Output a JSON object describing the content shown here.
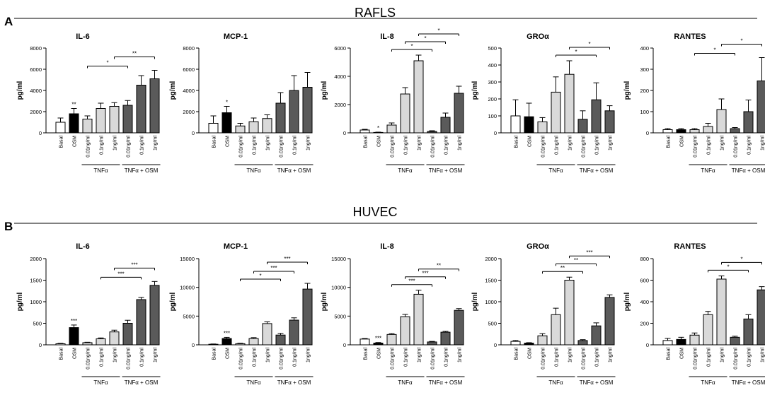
{
  "figure": {
    "panels": [
      {
        "letter": "A",
        "title": "RAFLS"
      },
      {
        "letter": "B",
        "title": "HUVEC"
      }
    ],
    "categories": [
      "Basal",
      "OSM",
      "0.01ng/ml",
      "0.1ng/ml",
      "1ng/ml",
      "0.01ng/ml",
      "0.1ng/ml",
      "1ng/ml"
    ],
    "group_labels": [
      "TNFα",
      "TNFα + OSM"
    ],
    "ylabel": "pg/ml",
    "colors": {
      "basal": "#ffffff",
      "osm": "#000000",
      "tnf": "#d9d9d9",
      "tnf_osm": "#5a5a5a",
      "axis": "#000000"
    }
  },
  "chart_data": [
    {
      "panel": "A",
      "type": "bar",
      "title": "IL-6",
      "ylim": [
        0,
        8000
      ],
      "yticks": [
        0,
        2000,
        4000,
        6000,
        8000
      ],
      "values": [
        1000,
        1800,
        1300,
        2300,
        2500,
        2600,
        4500,
        5100
      ],
      "errors": [
        400,
        500,
        300,
        500,
        350,
        450,
        900,
        800
      ],
      "star_labels": [
        "",
        "**",
        "",
        "",
        "",
        "",
        "",
        ""
      ],
      "brackets": [
        {
          "from": 2,
          "to": 5,
          "label": "*"
        },
        {
          "from": 4,
          "to": 7,
          "label": "**"
        }
      ]
    },
    {
      "panel": "A",
      "type": "bar",
      "title": "MCP-1",
      "ylim": [
        0,
        8000
      ],
      "yticks": [
        0,
        2000,
        4000,
        6000,
        8000
      ],
      "values": [
        900,
        1900,
        650,
        1050,
        1350,
        2800,
        4000,
        4300
      ],
      "errors": [
        700,
        600,
        250,
        350,
        350,
        1000,
        1400,
        1400
      ],
      "star_labels": [
        "",
        "*",
        "",
        "",
        "",
        "",
        "",
        ""
      ],
      "brackets": []
    },
    {
      "panel": "A",
      "type": "bar",
      "title": "IL-8",
      "ylim": [
        0,
        6000
      ],
      "yticks": [
        0,
        2000,
        4000,
        6000
      ],
      "values": [
        200,
        30,
        550,
        2750,
        5100,
        100,
        1100,
        2800
      ],
      "errors": [
        50,
        20,
        150,
        450,
        400,
        50,
        300,
        500
      ],
      "star_labels": [
        "",
        "*",
        "",
        "",
        "",
        "",
        "",
        ""
      ],
      "brackets": [
        {
          "from": 2,
          "to": 5,
          "label": "*"
        },
        {
          "from": 3,
          "to": 6,
          "label": "*"
        },
        {
          "from": 4,
          "to": 7,
          "label": "*"
        }
      ]
    },
    {
      "panel": "A",
      "type": "bar",
      "title": "GROα",
      "ylim": [
        0,
        500
      ],
      "yticks": [
        0,
        100,
        200,
        300,
        400,
        500
      ],
      "values": [
        100,
        95,
        65,
        240,
        345,
        80,
        195,
        130
      ],
      "errors": [
        95,
        80,
        25,
        90,
        80,
        50,
        100,
        30
      ],
      "star_labels": [
        "",
        "",
        "",
        "",
        "",
        "",
        "",
        ""
      ],
      "brackets": [
        {
          "from": 3,
          "to": 6,
          "label": "*"
        },
        {
          "from": 4,
          "to": 7,
          "label": "*"
        }
      ]
    },
    {
      "panel": "A",
      "type": "bar",
      "title": "RANTES",
      "ylim": [
        0,
        400
      ],
      "yticks": [
        0,
        100,
        200,
        300,
        400
      ],
      "values": [
        15,
        15,
        15,
        30,
        110,
        20,
        100,
        245
      ],
      "errors": [
        5,
        5,
        5,
        15,
        50,
        5,
        55,
        110
      ],
      "star_labels": [
        "",
        "",
        "",
        "",
        "",
        "",
        "",
        ""
      ],
      "brackets": [
        {
          "from": 2,
          "to": 5,
          "label": "*"
        },
        {
          "from": 4,
          "to": 7,
          "label": "*"
        }
      ]
    },
    {
      "panel": "B",
      "type": "bar",
      "title": "IL-6",
      "ylim": [
        0,
        2000
      ],
      "yticks": [
        0,
        500,
        1000,
        1500,
        2000
      ],
      "values": [
        25,
        400,
        50,
        140,
        300,
        500,
        1050,
        1380
      ],
      "errors": [
        10,
        60,
        10,
        20,
        40,
        70,
        50,
        90
      ],
      "star_labels": [
        "",
        "***",
        "",
        "",
        "",
        "",
        "",
        ""
      ],
      "brackets": [
        {
          "from": 3,
          "to": 6,
          "label": "***"
        },
        {
          "from": 4,
          "to": 7,
          "label": "***"
        }
      ]
    },
    {
      "panel": "B",
      "type": "bar",
      "title": "MCP-1",
      "ylim": [
        0,
        15000
      ],
      "yticks": [
        0,
        5000,
        10000,
        15000
      ],
      "values": [
        100,
        1100,
        200,
        1100,
        3700,
        1700,
        4300,
        9700
      ],
      "errors": [
        50,
        200,
        80,
        150,
        300,
        300,
        400,
        1000
      ],
      "star_labels": [
        "",
        "***",
        "",
        "",
        "",
        "",
        "",
        ""
      ],
      "brackets": [
        {
          "from": 2,
          "to": 5,
          "label": "*"
        },
        {
          "from": 3,
          "to": 6,
          "label": "***"
        },
        {
          "from": 4,
          "to": 7,
          "label": "***"
        }
      ]
    },
    {
      "panel": "B",
      "type": "bar",
      "title": "IL-8",
      "ylim": [
        0,
        15000
      ],
      "yticks": [
        0,
        5000,
        10000,
        15000
      ],
      "values": [
        1000,
        300,
        1800,
        4900,
        8800,
        500,
        2200,
        6000
      ],
      "errors": [
        100,
        100,
        150,
        400,
        700,
        100,
        150,
        300
      ],
      "star_labels": [
        "",
        "***",
        "",
        "",
        "",
        "",
        "",
        ""
      ],
      "brackets": [
        {
          "from": 2,
          "to": 5,
          "label": "***"
        },
        {
          "from": 3,
          "to": 6,
          "label": "***"
        },
        {
          "from": 4,
          "to": 7,
          "label": "**"
        }
      ]
    },
    {
      "panel": "B",
      "type": "bar",
      "title": "GROα",
      "ylim": [
        0,
        2000
      ],
      "yticks": [
        0,
        500,
        1000,
        1500,
        2000
      ],
      "values": [
        80,
        40,
        210,
        700,
        1500,
        100,
        440,
        1100
      ],
      "errors": [
        20,
        10,
        50,
        150,
        70,
        20,
        70,
        60
      ],
      "star_labels": [
        "",
        "",
        "",
        "",
        "",
        "",
        "",
        ""
      ],
      "brackets": [
        {
          "from": 2,
          "to": 5,
          "label": "**"
        },
        {
          "from": 3,
          "to": 6,
          "label": "**"
        },
        {
          "from": 4,
          "to": 7,
          "label": "***"
        }
      ]
    },
    {
      "panel": "B",
      "type": "bar",
      "title": "RANTES",
      "ylim": [
        0,
        800
      ],
      "yticks": [
        0,
        200,
        400,
        600,
        800
      ],
      "values": [
        40,
        50,
        90,
        280,
        610,
        70,
        240,
        510
      ],
      "errors": [
        20,
        20,
        20,
        30,
        30,
        10,
        40,
        30
      ],
      "star_labels": [
        "",
        "",
        "",
        "",
        "",
        "",
        "",
        ""
      ],
      "brackets": [
        {
          "from": 3,
          "to": 6,
          "label": "*"
        },
        {
          "from": 4,
          "to": 7,
          "label": "*"
        }
      ]
    }
  ]
}
